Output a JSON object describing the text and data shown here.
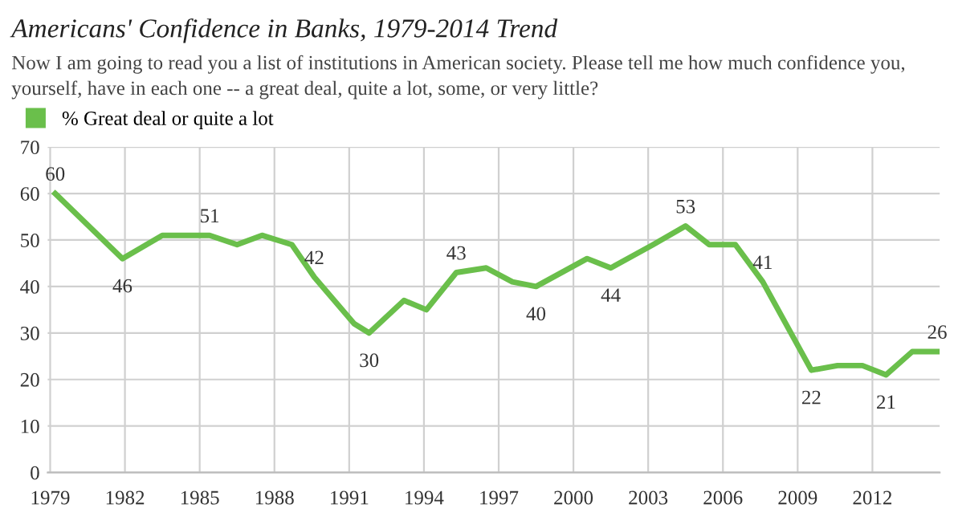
{
  "chart_data": {
    "type": "line",
    "title": "Americans' Confidence in Banks, 1979-2014 Trend",
    "subtitle": "Now I am going to read you a list of institutions in American society. Please tell me how much confidence you, yourself, have in each one -- a great deal, quite a lot, some, or very little?",
    "x": [
      1979.2,
      1981.9,
      1983.5,
      1985.4,
      1986.5,
      1987.5,
      1988.7,
      1989.6,
      1991.2,
      1991.8,
      1993.2,
      1994.1,
      1995.3,
      1996.5,
      1997.55,
      1998.5,
      2000.55,
      2001.5,
      2003.2,
      2004.5,
      2005.45,
      2006.5,
      2007.6,
      2009.55,
      2010.6,
      2011.6,
      2012.55,
      2013.6,
      2014.6
    ],
    "series": [
      {
        "name": "% Great deal or quite a lot",
        "color": "#6abf4b",
        "values": [
          60,
          46,
          51,
          51,
          49,
          51,
          49,
          42,
          32,
          30,
          37,
          35,
          43,
          44,
          41,
          40,
          46,
          44,
          49,
          53,
          49,
          49,
          41,
          22,
          23,
          23,
          21,
          26,
          26
        ]
      }
    ],
    "annotations": [
      {
        "text": "60",
        "x": 1979.2,
        "y": 60
      },
      {
        "text": "46",
        "x": 1981.9,
        "y": 46
      },
      {
        "text": "51",
        "x": 1985.4,
        "y": 51
      },
      {
        "text": "42",
        "x": 1989.6,
        "y": 42
      },
      {
        "text": "30",
        "x": 1991.8,
        "y": 30
      },
      {
        "text": "43",
        "x": 1995.3,
        "y": 43
      },
      {
        "text": "40",
        "x": 1998.5,
        "y": 40
      },
      {
        "text": "44",
        "x": 2001.5,
        "y": 44
      },
      {
        "text": "53",
        "x": 2004.5,
        "y": 53
      },
      {
        "text": "41",
        "x": 2007.6,
        "y": 41
      },
      {
        "text": "22",
        "x": 2009.55,
        "y": 22
      },
      {
        "text": "21",
        "x": 2012.55,
        "y": 21
      },
      {
        "text": "26",
        "x": 2014.6,
        "y": 26
      }
    ],
    "xlim": [
      1978.9,
      2014.7
    ],
    "xticks": [
      1979,
      1982,
      1985,
      1988,
      1991,
      1994,
      1997,
      2000,
      2003,
      2006,
      2009,
      2012
    ],
    "ylim": [
      0,
      70
    ],
    "yticks": [
      0,
      10,
      20,
      30,
      40,
      50,
      60,
      70
    ],
    "grid": true,
    "legend": "top left",
    "marker": "none",
    "line_style": "solid"
  }
}
